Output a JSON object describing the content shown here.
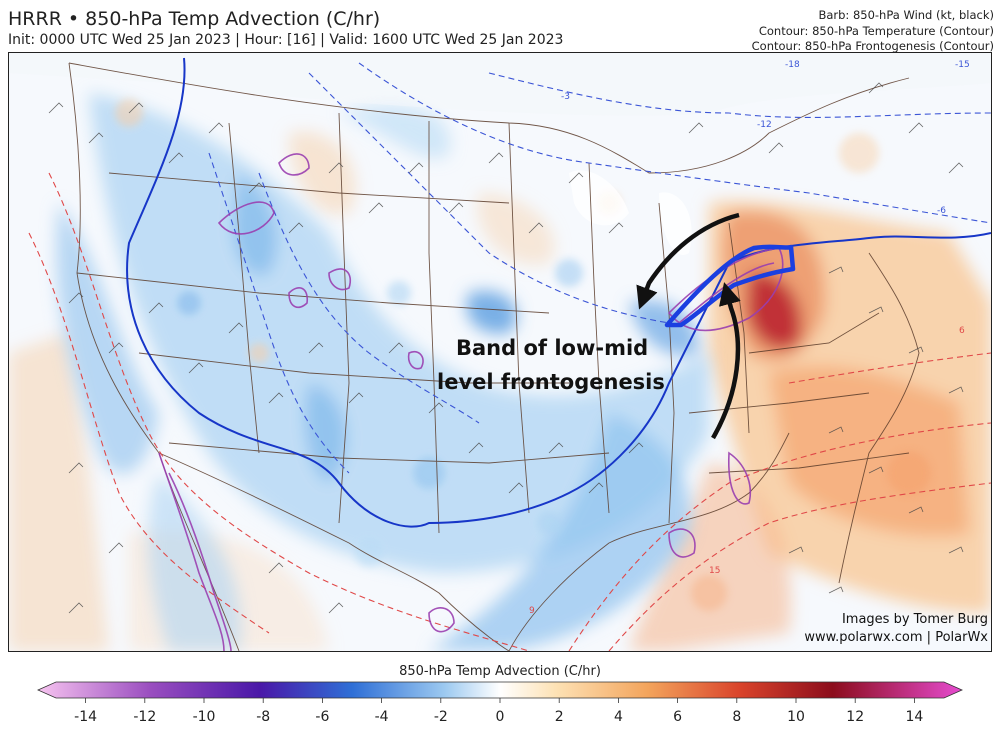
{
  "header": {
    "title": "HRRR • 850-hPa Temp Advection (C/hr)",
    "subtitle": "Init: 0000 UTC Wed 25 Jan 2023 | Hour: [16] | Valid: 1600 UTC Wed 25 Jan 2023",
    "legend_lines": [
      "Barb: 850-hPa Wind (kt, black)",
      "Contour: 850-hPa Temperature (Contour)",
      "Contour: 850-hPa Frontogenesis (Contour)"
    ]
  },
  "map": {
    "annotation_line1": "Band of low-mid",
    "annotation_line2": "level frontogenesis",
    "credit_line1": "Images by Tomer Burg",
    "credit_line2": "www.polarwx.com | PolarWx",
    "temp_labels": [
      "-18",
      "-15",
      "-12",
      "-6",
      "-3",
      "6",
      "9",
      "15"
    ]
  },
  "colorbar": {
    "title": "850-hPa Temp Advection (C/hr)",
    "ticks": [
      -14,
      -12,
      -10,
      -8,
      -6,
      -4,
      -2,
      0,
      2,
      4,
      6,
      8,
      10,
      12,
      14
    ],
    "min": -15,
    "max": 15,
    "colors": {
      "neg_extreme": "#f7c4f0",
      "neg_high": "#9b4fc0",
      "neg_mid": "#4a18a8",
      "neg_low": "#2f6fd6",
      "neg_small": "#9cc9f0",
      "zero": "#ffffff",
      "pos_small": "#fde2b5",
      "pos_low": "#f3a45c",
      "pos_mid": "#d9432b",
      "pos_high": "#8c0d1c",
      "pos_extreme": "#e64bd0"
    }
  }
}
